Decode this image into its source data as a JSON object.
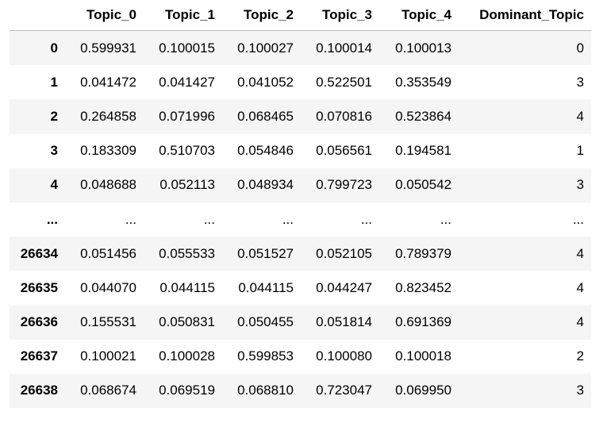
{
  "table": {
    "columns": [
      "Topic_0",
      "Topic_1",
      "Topic_2",
      "Topic_3",
      "Topic_4",
      "Dominant_Topic"
    ],
    "rows": [
      [
        "0",
        "0.599931",
        "0.100015",
        "0.100027",
        "0.100014",
        "0.100013",
        "0"
      ],
      [
        "1",
        "0.041472",
        "0.041427",
        "0.041052",
        "0.522501",
        "0.353549",
        "3"
      ],
      [
        "2",
        "0.264858",
        "0.071996",
        "0.068465",
        "0.070816",
        "0.523864",
        "4"
      ],
      [
        "3",
        "0.183309",
        "0.510703",
        "0.054846",
        "0.056561",
        "0.194581",
        "1"
      ],
      [
        "4",
        "0.048688",
        "0.052113",
        "0.048934",
        "0.799723",
        "0.050542",
        "3"
      ],
      [
        "...",
        "...",
        "...",
        "...",
        "...",
        "...",
        "..."
      ],
      [
        "26634",
        "0.051456",
        "0.055533",
        "0.051527",
        "0.052105",
        "0.789379",
        "4"
      ],
      [
        "26635",
        "0.044070",
        "0.044115",
        "0.044115",
        "0.044247",
        "0.823452",
        "4"
      ],
      [
        "26636",
        "0.155531",
        "0.050831",
        "0.050455",
        "0.051814",
        "0.691369",
        "4"
      ],
      [
        "26637",
        "0.100021",
        "0.100028",
        "0.599853",
        "0.100080",
        "0.100018",
        "2"
      ],
      [
        "26638",
        "0.068674",
        "0.069519",
        "0.068810",
        "0.723047",
        "0.069950",
        "3"
      ]
    ]
  }
}
